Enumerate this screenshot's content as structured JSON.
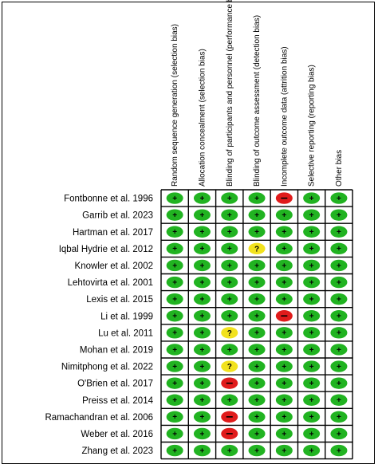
{
  "columns": [
    "Random sequence generation (selection bias)",
    "Allocation concealment (selection bias)",
    "Blinding of participants and personnel (performance bias)",
    "Blinding of outcome assessment (detection bias)",
    "Incomplete outcome data (attrition bias)",
    "Selective reporting (reporting bias)",
    "Other bias"
  ],
  "studies": [
    {
      "name": "Fontbonne et al. 1996",
      "ratings": [
        "+",
        "+",
        "+",
        "+",
        "-",
        "+",
        "+"
      ]
    },
    {
      "name": "Garrib et al. 2023",
      "ratings": [
        "+",
        "+",
        "+",
        "+",
        "+",
        "+",
        "+"
      ]
    },
    {
      "name": "Hartman et al. 2017",
      "ratings": [
        "+",
        "+",
        "+",
        "+",
        "+",
        "+",
        "+"
      ]
    },
    {
      "name": "Iqbal Hydrie et al. 2012",
      "ratings": [
        "+",
        "+",
        "+",
        "?",
        "+",
        "+",
        "+"
      ]
    },
    {
      "name": "Knowler et al. 2002",
      "ratings": [
        "+",
        "+",
        "+",
        "+",
        "+",
        "+",
        "+"
      ]
    },
    {
      "name": "Lehtovirta et al. 2001",
      "ratings": [
        "+",
        "+",
        "+",
        "+",
        "+",
        "+",
        "+"
      ]
    },
    {
      "name": "Lexis et al. 2015",
      "ratings": [
        "+",
        "+",
        "+",
        "+",
        "+",
        "+",
        "+"
      ]
    },
    {
      "name": "Li et al. 1999",
      "ratings": [
        "+",
        "+",
        "+",
        "+",
        "-",
        "+",
        "+"
      ]
    },
    {
      "name": "Lu et al. 2011",
      "ratings": [
        "+",
        "+",
        "?",
        "+",
        "+",
        "+",
        "+"
      ]
    },
    {
      "name": "Mohan et al. 2019",
      "ratings": [
        "+",
        "+",
        "+",
        "+",
        "+",
        "+",
        "+"
      ]
    },
    {
      "name": "Nimitphong et al. 2022",
      "ratings": [
        "+",
        "+",
        "?",
        "+",
        "+",
        "+",
        "+"
      ]
    },
    {
      "name": "O'Brien et al. 2017",
      "ratings": [
        "+",
        "+",
        "-",
        "+",
        "+",
        "+",
        "+"
      ]
    },
    {
      "name": "Preiss et al. 2014",
      "ratings": [
        "+",
        "+",
        "+",
        "+",
        "+",
        "+",
        "+"
      ]
    },
    {
      "name": "Ramachandran et al. 2006",
      "ratings": [
        "+",
        "+",
        "-",
        "+",
        "+",
        "+",
        "+"
      ]
    },
    {
      "name": "Weber et al. 2016",
      "ratings": [
        "+",
        "+",
        "-",
        "+",
        "+",
        "+",
        "+"
      ]
    },
    {
      "name": "Zhang et al. 2023",
      "ratings": [
        "+",
        "+",
        "+",
        "+",
        "+",
        "+",
        "+"
      ]
    }
  ],
  "colors": {
    "low": "#21b321",
    "unclear": "#f2e21e",
    "high": "#e01b1b",
    "grid": "#000000"
  }
}
